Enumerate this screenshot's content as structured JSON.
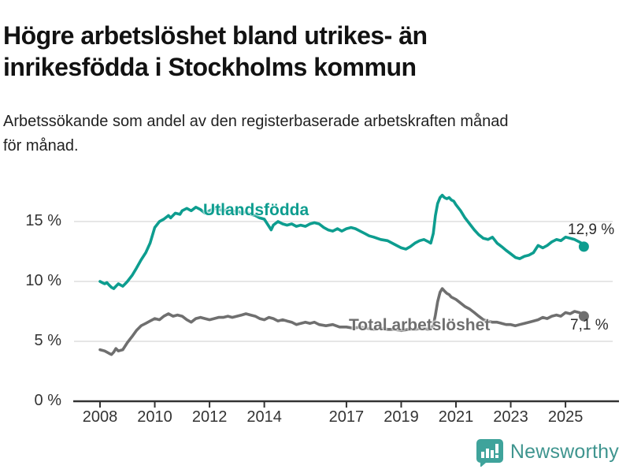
{
  "header": {
    "title_line1": "Högre arbetslöshet bland utrikes- än",
    "title_line2": "inrikesfödda i Stockholms kommun",
    "subtitle_line1": "Arbetssökande som andel av den registerbaserade arbetskraften månad",
    "subtitle_line2": "för månad."
  },
  "chart_data": {
    "type": "line",
    "title": "Högre arbetslöshet bland utrikes- än inrikesfödda i Stockholms kommun",
    "subtitle": "Arbetssökande som andel av den registerbaserade arbetskraften månad för månad.",
    "grid": "horizontal-only",
    "legend_position": "inline-labels",
    "x_axis": {
      "range": [
        2007.9,
        2026.2
      ],
      "ticks": [
        {
          "value": 2008,
          "label": "2008"
        },
        {
          "value": 2010,
          "label": "2010"
        },
        {
          "value": 2012,
          "label": "2012"
        },
        {
          "value": 2014,
          "label": "2014"
        },
        {
          "value": 2017,
          "label": "2017"
        },
        {
          "value": 2019,
          "label": "2019"
        },
        {
          "value": 2021,
          "label": "2021"
        },
        {
          "value": 2023,
          "label": "2023"
        },
        {
          "value": 2025,
          "label": "2025"
        }
      ]
    },
    "y_axis": {
      "range": [
        0,
        17.6
      ],
      "unit": "%",
      "ticks": [
        {
          "value": 0,
          "label": "0 %"
        },
        {
          "value": 5,
          "label": "5 %"
        },
        {
          "value": 10,
          "label": "10 %"
        },
        {
          "value": 15,
          "label": "15 %"
        }
      ]
    },
    "series": [
      {
        "name": "Utlandsfödda",
        "color": "#0d9d8f",
        "end_label": "12,9 %",
        "end_value": 12.9,
        "points": [
          [
            2008.0,
            10.0
          ],
          [
            2008.08,
            9.9
          ],
          [
            2008.17,
            9.8
          ],
          [
            2008.25,
            9.9
          ],
          [
            2008.33,
            9.7
          ],
          [
            2008.42,
            9.5
          ],
          [
            2008.5,
            9.4
          ],
          [
            2008.58,
            9.6
          ],
          [
            2008.67,
            9.8
          ],
          [
            2008.75,
            9.7
          ],
          [
            2008.83,
            9.6
          ],
          [
            2008.92,
            9.8
          ],
          [
            2009.0,
            10.0
          ],
          [
            2009.17,
            10.5
          ],
          [
            2009.33,
            11.1
          ],
          [
            2009.5,
            11.8
          ],
          [
            2009.67,
            12.4
          ],
          [
            2009.83,
            13.2
          ],
          [
            2010.0,
            14.5
          ],
          [
            2010.17,
            15.0
          ],
          [
            2010.33,
            15.2
          ],
          [
            2010.5,
            15.5
          ],
          [
            2010.58,
            15.3
          ],
          [
            2010.75,
            15.7
          ],
          [
            2010.92,
            15.6
          ],
          [
            2011.0,
            15.9
          ],
          [
            2011.17,
            16.1
          ],
          [
            2011.33,
            15.9
          ],
          [
            2011.5,
            16.2
          ],
          [
            2011.67,
            16.0
          ],
          [
            2011.83,
            15.7
          ],
          [
            2012.0,
            15.9
          ],
          [
            2012.17,
            16.1
          ],
          [
            2012.33,
            16.0
          ],
          [
            2012.5,
            15.9
          ],
          [
            2012.67,
            16.0
          ],
          [
            2012.83,
            15.8
          ],
          [
            2013.0,
            15.9
          ],
          [
            2013.17,
            15.7
          ],
          [
            2013.33,
            15.8
          ],
          [
            2013.5,
            15.6
          ],
          [
            2013.67,
            15.5
          ],
          [
            2013.83,
            15.3
          ],
          [
            2014.0,
            15.2
          ],
          [
            2014.17,
            14.6
          ],
          [
            2014.25,
            14.3
          ],
          [
            2014.33,
            14.7
          ],
          [
            2014.5,
            15.0
          ],
          [
            2014.67,
            14.8
          ],
          [
            2014.83,
            14.7
          ],
          [
            2015.0,
            14.8
          ],
          [
            2015.17,
            14.6
          ],
          [
            2015.33,
            14.7
          ],
          [
            2015.5,
            14.6
          ],
          [
            2015.67,
            14.8
          ],
          [
            2015.83,
            14.9
          ],
          [
            2016.0,
            14.8
          ],
          [
            2016.17,
            14.5
          ],
          [
            2016.33,
            14.3
          ],
          [
            2016.5,
            14.2
          ],
          [
            2016.67,
            14.4
          ],
          [
            2016.83,
            14.2
          ],
          [
            2017.0,
            14.4
          ],
          [
            2017.17,
            14.5
          ],
          [
            2017.33,
            14.4
          ],
          [
            2017.5,
            14.2
          ],
          [
            2017.67,
            14.0
          ],
          [
            2017.83,
            13.8
          ],
          [
            2018.0,
            13.7
          ],
          [
            2018.25,
            13.5
          ],
          [
            2018.5,
            13.4
          ],
          [
            2018.75,
            13.1
          ],
          [
            2019.0,
            12.8
          ],
          [
            2019.17,
            12.7
          ],
          [
            2019.33,
            12.9
          ],
          [
            2019.5,
            13.2
          ],
          [
            2019.67,
            13.4
          ],
          [
            2019.83,
            13.5
          ],
          [
            2020.0,
            13.3
          ],
          [
            2020.08,
            13.2
          ],
          [
            2020.17,
            14.0
          ],
          [
            2020.25,
            15.5
          ],
          [
            2020.33,
            16.5
          ],
          [
            2020.42,
            17.0
          ],
          [
            2020.5,
            17.2
          ],
          [
            2020.58,
            17.0
          ],
          [
            2020.67,
            16.9
          ],
          [
            2020.75,
            17.0
          ],
          [
            2020.83,
            16.8
          ],
          [
            2020.92,
            16.7
          ],
          [
            2021.0,
            16.4
          ],
          [
            2021.17,
            15.9
          ],
          [
            2021.33,
            15.3
          ],
          [
            2021.5,
            14.8
          ],
          [
            2021.67,
            14.3
          ],
          [
            2021.83,
            13.9
          ],
          [
            2022.0,
            13.6
          ],
          [
            2022.17,
            13.5
          ],
          [
            2022.33,
            13.7
          ],
          [
            2022.5,
            13.2
          ],
          [
            2022.67,
            12.9
          ],
          [
            2022.83,
            12.6
          ],
          [
            2023.0,
            12.3
          ],
          [
            2023.17,
            12.0
          ],
          [
            2023.33,
            11.9
          ],
          [
            2023.5,
            12.1
          ],
          [
            2023.67,
            12.2
          ],
          [
            2023.83,
            12.4
          ],
          [
            2024.0,
            13.0
          ],
          [
            2024.17,
            12.8
          ],
          [
            2024.33,
            13.0
          ],
          [
            2024.5,
            13.3
          ],
          [
            2024.67,
            13.5
          ],
          [
            2024.83,
            13.4
          ],
          [
            2025.0,
            13.7
          ],
          [
            2025.17,
            13.6
          ],
          [
            2025.33,
            13.5
          ],
          [
            2025.5,
            13.3
          ],
          [
            2025.58,
            13.2
          ],
          [
            2025.67,
            12.9
          ]
        ]
      },
      {
        "name": "Total arbetslöshet",
        "color": "#6f6f6f",
        "end_label": "7,1 %",
        "end_value": 7.1,
        "points": [
          [
            2008.0,
            4.3
          ],
          [
            2008.17,
            4.2
          ],
          [
            2008.33,
            4.0
          ],
          [
            2008.42,
            3.9
          ],
          [
            2008.5,
            4.1
          ],
          [
            2008.58,
            4.4
          ],
          [
            2008.67,
            4.2
          ],
          [
            2008.83,
            4.3
          ],
          [
            2009.0,
            4.9
          ],
          [
            2009.17,
            5.4
          ],
          [
            2009.33,
            5.9
          ],
          [
            2009.5,
            6.3
          ],
          [
            2009.67,
            6.5
          ],
          [
            2009.83,
            6.7
          ],
          [
            2010.0,
            6.9
          ],
          [
            2010.17,
            6.8
          ],
          [
            2010.33,
            7.1
          ],
          [
            2010.5,
            7.3
          ],
          [
            2010.67,
            7.1
          ],
          [
            2010.83,
            7.2
          ],
          [
            2011.0,
            7.1
          ],
          [
            2011.17,
            6.8
          ],
          [
            2011.33,
            6.6
          ],
          [
            2011.5,
            6.9
          ],
          [
            2011.67,
            7.0
          ],
          [
            2011.83,
            6.9
          ],
          [
            2012.0,
            6.8
          ],
          [
            2012.17,
            6.9
          ],
          [
            2012.33,
            7.0
          ],
          [
            2012.5,
            7.0
          ],
          [
            2012.67,
            7.1
          ],
          [
            2012.83,
            7.0
          ],
          [
            2013.0,
            7.1
          ],
          [
            2013.17,
            7.2
          ],
          [
            2013.33,
            7.3
          ],
          [
            2013.5,
            7.2
          ],
          [
            2013.67,
            7.1
          ],
          [
            2013.83,
            6.9
          ],
          [
            2014.0,
            6.8
          ],
          [
            2014.17,
            7.0
          ],
          [
            2014.33,
            6.9
          ],
          [
            2014.5,
            6.7
          ],
          [
            2014.67,
            6.8
          ],
          [
            2014.83,
            6.7
          ],
          [
            2015.0,
            6.6
          ],
          [
            2015.17,
            6.4
          ],
          [
            2015.33,
            6.5
          ],
          [
            2015.5,
            6.6
          ],
          [
            2015.67,
            6.5
          ],
          [
            2015.83,
            6.6
          ],
          [
            2016.0,
            6.4
          ],
          [
            2016.25,
            6.3
          ],
          [
            2016.5,
            6.4
          ],
          [
            2016.75,
            6.2
          ],
          [
            2017.0,
            6.2
          ],
          [
            2017.25,
            6.1
          ],
          [
            2017.5,
            6.2
          ],
          [
            2017.75,
            6.1
          ],
          [
            2018.0,
            6.0
          ],
          [
            2018.25,
            6.1
          ],
          [
            2018.5,
            6.0
          ],
          [
            2018.75,
            6.0
          ],
          [
            2019.0,
            5.9
          ],
          [
            2019.25,
            6.0
          ],
          [
            2019.5,
            6.0
          ],
          [
            2019.75,
            6.1
          ],
          [
            2020.0,
            6.0
          ],
          [
            2020.17,
            6.3
          ],
          [
            2020.25,
            7.2
          ],
          [
            2020.33,
            8.3
          ],
          [
            2020.42,
            9.1
          ],
          [
            2020.5,
            9.4
          ],
          [
            2020.58,
            9.2
          ],
          [
            2020.67,
            9.0
          ],
          [
            2020.75,
            8.9
          ],
          [
            2020.83,
            8.7
          ],
          [
            2021.0,
            8.5
          ],
          [
            2021.17,
            8.2
          ],
          [
            2021.33,
            7.9
          ],
          [
            2021.5,
            7.7
          ],
          [
            2021.67,
            7.4
          ],
          [
            2021.83,
            7.1
          ],
          [
            2022.0,
            6.8
          ],
          [
            2022.17,
            6.7
          ],
          [
            2022.33,
            6.6
          ],
          [
            2022.5,
            6.6
          ],
          [
            2022.67,
            6.5
          ],
          [
            2022.83,
            6.4
          ],
          [
            2023.0,
            6.4
          ],
          [
            2023.17,
            6.3
          ],
          [
            2023.33,
            6.4
          ],
          [
            2023.5,
            6.5
          ],
          [
            2023.67,
            6.6
          ],
          [
            2023.83,
            6.7
          ],
          [
            2024.0,
            6.8
          ],
          [
            2024.17,
            7.0
          ],
          [
            2024.33,
            6.9
          ],
          [
            2024.5,
            7.1
          ],
          [
            2024.67,
            7.2
          ],
          [
            2024.83,
            7.1
          ],
          [
            2025.0,
            7.4
          ],
          [
            2025.17,
            7.3
          ],
          [
            2025.33,
            7.5
          ],
          [
            2025.5,
            7.4
          ],
          [
            2025.58,
            7.3
          ],
          [
            2025.67,
            7.1
          ]
        ]
      }
    ],
    "colors": {
      "gridline": "#dddddd",
      "axis": "#333333",
      "tick_label": "#333333"
    }
  },
  "branding": {
    "logo_text": "Newsworthy",
    "logo_text_color": "#3f958f",
    "logo_icon": "bar-chart-speech-bubble-icon",
    "logo_icon_color": "#3fa39b"
  }
}
